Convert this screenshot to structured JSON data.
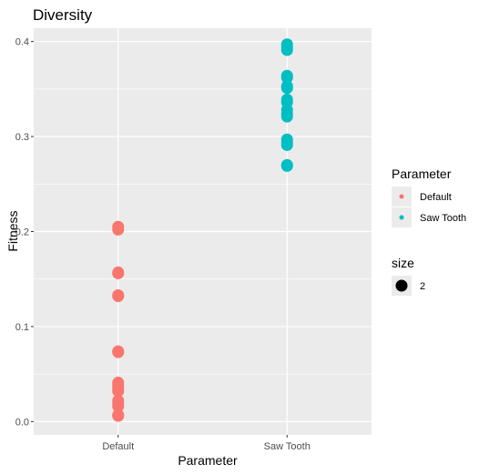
{
  "chart_data": {
    "type": "scatter",
    "title": "Diversity",
    "xlabel": "Parameter",
    "ylabel": "Fitness",
    "categories": [
      "Default",
      "Saw Tooth"
    ],
    "ylim": [
      -0.014,
      0.414
    ],
    "y_ticks": [
      "0.0",
      "0.1",
      "0.2",
      "0.3",
      "0.4"
    ],
    "y_tick_values": [
      0.0,
      0.1,
      0.2,
      0.3,
      0.4
    ],
    "grid": true,
    "background": "#EBEBEB",
    "series": [
      {
        "name": "Default",
        "color": "#F8766D",
        "category": "Default",
        "y": [
          0.205,
          0.202,
          0.157,
          0.156,
          0.133,
          0.132,
          0.074,
          0.073,
          0.041,
          0.038,
          0.035,
          0.032,
          0.022,
          0.019,
          0.016,
          0.007,
          0.006
        ]
      },
      {
        "name": "Saw Tooth",
        "color": "#00BFC4",
        "category": "Saw Tooth",
        "y": [
          0.397,
          0.394,
          0.391,
          0.364,
          0.362,
          0.353,
          0.351,
          0.339,
          0.336,
          0.328,
          0.324,
          0.321,
          0.297,
          0.294,
          0.291,
          0.27,
          0.269
        ]
      }
    ],
    "legend": {
      "placement": "right",
      "colour_title": "Parameter",
      "colour_items": [
        "Default",
        "Saw Tooth"
      ],
      "size_title": "size",
      "size_items": [
        "2"
      ]
    }
  }
}
